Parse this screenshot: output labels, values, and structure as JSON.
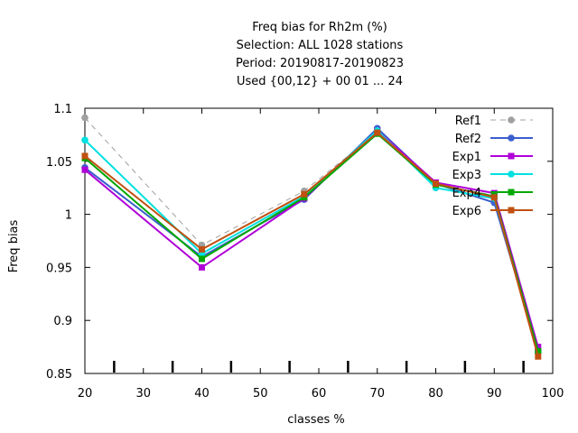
{
  "chart_data": {
    "type": "line",
    "title_lines": [
      "Freq bias  for Rh2m (%)",
      "Selection: ALL   1028 stations",
      "Period: 20190817-20190823",
      "Used {00,12} + 00 01 ... 24"
    ],
    "xlabel": "classes %",
    "ylabel": "Freq bias",
    "xlim": [
      20,
      100
    ],
    "ylim": [
      0.85,
      1.1
    ],
    "xticks": [
      20,
      30,
      40,
      50,
      60,
      70,
      80,
      90,
      100
    ],
    "xtick_labels": [
      "20",
      "30",
      "40",
      "50",
      "60",
      "70",
      "80",
      "90",
      "100"
    ],
    "yticks": [
      0.85,
      0.9,
      0.95,
      1,
      1.05,
      1.1
    ],
    "ytick_labels": [
      "0.85",
      "0.9",
      "0.95",
      "1",
      "1.05",
      "1.1"
    ],
    "class_marks": [
      25,
      35,
      45,
      55,
      65,
      75,
      85,
      95
    ],
    "legend_position": "top-right",
    "x": [
      20,
      40,
      57.5,
      70,
      80,
      90,
      97.5
    ],
    "series": [
      {
        "name": "Ref1",
        "color": "#a0a0a0",
        "dash": true,
        "marker": "circle",
        "values": [
          1.091,
          0.971,
          1.022,
          1.077,
          1.028,
          1.018,
          0.869
        ]
      },
      {
        "name": "Ref2",
        "color": "#3a5fcd",
        "dash": false,
        "marker": "circle",
        "values": [
          1.044,
          0.96,
          1.014,
          1.081,
          1.029,
          1.011,
          0.872
        ]
      },
      {
        "name": "Exp1",
        "color": "#b000d8",
        "dash": false,
        "marker": "square",
        "values": [
          1.042,
          0.95,
          1.015,
          1.079,
          1.03,
          1.02,
          0.875
        ]
      },
      {
        "name": "Exp3",
        "color": "#00e0e0",
        "dash": false,
        "marker": "circle",
        "values": [
          1.07,
          0.963,
          1.017,
          1.079,
          1.025,
          1.015,
          0.87
        ]
      },
      {
        "name": "Exp4",
        "color": "#00a800",
        "dash": false,
        "marker": "square",
        "values": [
          1.053,
          0.958,
          1.016,
          1.076,
          1.028,
          1.017,
          0.871
        ]
      },
      {
        "name": "Exp6",
        "color": "#c05010",
        "dash": false,
        "marker": "square",
        "values": [
          1.055,
          0.967,
          1.019,
          1.077,
          1.029,
          1.016,
          0.866
        ]
      }
    ]
  }
}
